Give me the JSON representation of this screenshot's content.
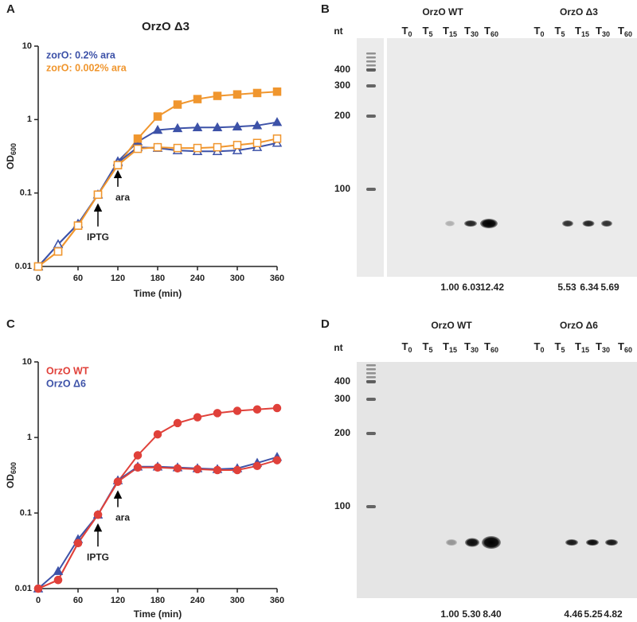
{
  "chart_data": [
    {
      "type": "line",
      "panel": "A",
      "title": "OrzO Δ3",
      "xlabel": "Time (min)",
      "ylabel": {
        "main": "OD",
        "sub": "600"
      },
      "log_y": true,
      "legend": "upper left",
      "x": [
        0,
        30,
        60,
        90,
        120,
        150,
        180,
        210,
        240,
        270,
        300,
        330,
        360
      ],
      "xlim": [
        0,
        360
      ],
      "xticks": [
        0,
        60,
        120,
        180,
        240,
        300,
        360
      ],
      "ylim": [
        0.01,
        10
      ],
      "yticks": [
        0.01,
        0.1,
        1,
        10
      ],
      "series": [
        {
          "name": "zorO: 0.2% ara",
          "color": "#3d52a8",
          "marker": "triangle",
          "filled": true,
          "values": [
            0.01,
            0.02,
            0.038,
            0.095,
            0.27,
            0.5,
            0.72,
            0.76,
            0.78,
            0.78,
            0.8,
            0.83,
            0.92
          ]
        },
        {
          "name": "zorO: 0.002% ara",
          "color": "#f0962e",
          "marker": "square",
          "filled": true,
          "values": [
            0.01,
            0.016,
            0.036,
            0.095,
            0.24,
            0.55,
            1.1,
            1.6,
            1.9,
            2.1,
            2.2,
            2.3,
            2.4
          ]
        },
        {
          "color": "#3d52a8",
          "marker": "triangle",
          "filled": false,
          "values": [
            0.01,
            0.02,
            0.038,
            0.095,
            0.26,
            0.42,
            0.41,
            0.38,
            0.37,
            0.37,
            0.38,
            0.42,
            0.48
          ]
        },
        {
          "color": "#f0962e",
          "marker": "square",
          "filled": false,
          "values": [
            0.01,
            0.016,
            0.036,
            0.095,
            0.24,
            0.4,
            0.42,
            0.41,
            0.41,
            0.42,
            0.45,
            0.48,
            0.55
          ]
        }
      ],
      "annotations": [
        {
          "text": "IPTG",
          "x": 90
        },
        {
          "text": "ara",
          "x": 120
        }
      ]
    },
    {
      "type": "line",
      "panel": "C",
      "xlabel": "Time (min)",
      "ylabel": {
        "main": "OD",
        "sub": "600"
      },
      "log_y": true,
      "legend": "upper left",
      "x": [
        0,
        30,
        60,
        90,
        120,
        150,
        180,
        210,
        240,
        270,
        300,
        330,
        360
      ],
      "xlim": [
        0,
        360
      ],
      "xticks": [
        0,
        60,
        120,
        180,
        240,
        300,
        360
      ],
      "ylim": [
        0.01,
        10
      ],
      "yticks": [
        0.01,
        0.1,
        1,
        10
      ],
      "series": [
        {
          "name": "OrzO WT",
          "color": "#e0413a",
          "marker": "circle",
          "filled": true,
          "values": [
            0.01,
            0.013,
            0.04,
            0.095,
            0.26,
            0.58,
            1.1,
            1.55,
            1.85,
            2.1,
            2.25,
            2.35,
            2.45
          ]
        },
        {
          "name": "OrzO Δ6",
          "color": "#3d52a8",
          "marker": "triangle",
          "filled": true,
          "values": [
            0.01,
            0.017,
            0.045,
            0.095,
            0.27,
            0.41,
            0.41,
            0.4,
            0.39,
            0.38,
            0.39,
            0.46,
            0.55
          ]
        },
        {
          "color": "#e0413a",
          "marker": "circle",
          "filled": true,
          "values": [
            0.01,
            0.013,
            0.04,
            0.095,
            0.26,
            0.4,
            0.4,
            0.39,
            0.38,
            0.37,
            0.37,
            0.42,
            0.5
          ]
        }
      ],
      "annotations": [
        {
          "text": "IPTG",
          "x": 90
        },
        {
          "text": "ara",
          "x": 120
        }
      ]
    }
  ],
  "gels": [
    {
      "panel": "B",
      "unit": "nt",
      "ladder": [
        "400",
        "300",
        "200",
        "100"
      ],
      "groups": [
        {
          "name": "OrzO WT",
          "lanes": [
            {
              "t": "T",
              "sub": "0"
            },
            {
              "t": "T",
              "sub": "5"
            },
            {
              "t": "T",
              "sub": "15"
            },
            {
              "t": "T",
              "sub": "30"
            },
            {
              "t": "T",
              "sub": "60"
            }
          ],
          "quant": [
            "1.00",
            "6.03",
            "12.42"
          ]
        },
        {
          "name": "OrzO Δ3",
          "lanes": [
            {
              "t": "T",
              "sub": "0"
            },
            {
              "t": "T",
              "sub": "5"
            },
            {
              "t": "T",
              "sub": "15"
            },
            {
              "t": "T",
              "sub": "30"
            },
            {
              "t": "T",
              "sub": "60"
            }
          ],
          "quant": [
            "5.53",
            "6.34",
            "5.69"
          ]
        }
      ]
    },
    {
      "panel": "D",
      "unit": "nt",
      "ladder": [
        "400",
        "300",
        "200",
        "100"
      ],
      "groups": [
        {
          "name": "OrzO WT",
          "lanes": [
            {
              "t": "T",
              "sub": "0"
            },
            {
              "t": "T",
              "sub": "5"
            },
            {
              "t": "T",
              "sub": "15"
            },
            {
              "t": "T",
              "sub": "30"
            },
            {
              "t": "T",
              "sub": "60"
            }
          ],
          "quant": [
            "1.00",
            "5.30",
            "8.40"
          ]
        },
        {
          "name": "OrzO Δ6",
          "lanes": [
            {
              "t": "T",
              "sub": "0"
            },
            {
              "t": "T",
              "sub": "5"
            },
            {
              "t": "T",
              "sub": "15"
            },
            {
              "t": "T",
              "sub": "30"
            },
            {
              "t": "T",
              "sub": "60"
            }
          ],
          "quant": [
            "4.46",
            "5.25",
            "4.82"
          ]
        }
      ]
    }
  ]
}
